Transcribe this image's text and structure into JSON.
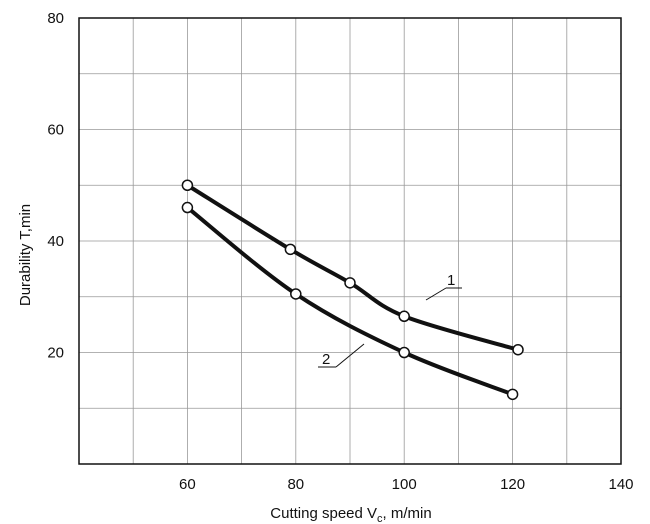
{
  "chart_data": {
    "type": "line",
    "title": "",
    "xlabel_main": "Cutting speed V",
    "xlabel_sub": "c",
    "xlabel_rest": ", m/min",
    "ylabel": "Durability T,min",
    "xlim": [
      40,
      140
    ],
    "ylim": [
      0,
      80
    ],
    "xticks": [
      60,
      80,
      100,
      120,
      140
    ],
    "yticks": [
      20,
      40,
      60,
      80
    ],
    "grid": true,
    "series": [
      {
        "name": "1",
        "x": [
          60,
          79,
          90,
          100,
          121
        ],
        "y": [
          50,
          38.5,
          32.5,
          26.5,
          20.5
        ]
      },
      {
        "name": "2",
        "x": [
          60,
          80,
          100,
          120
        ],
        "y": [
          46,
          30.5,
          20,
          12.5
        ]
      }
    ]
  },
  "colors": {
    "line": "#111111",
    "grid": "#999999",
    "marker_fill": "#ffffff"
  }
}
